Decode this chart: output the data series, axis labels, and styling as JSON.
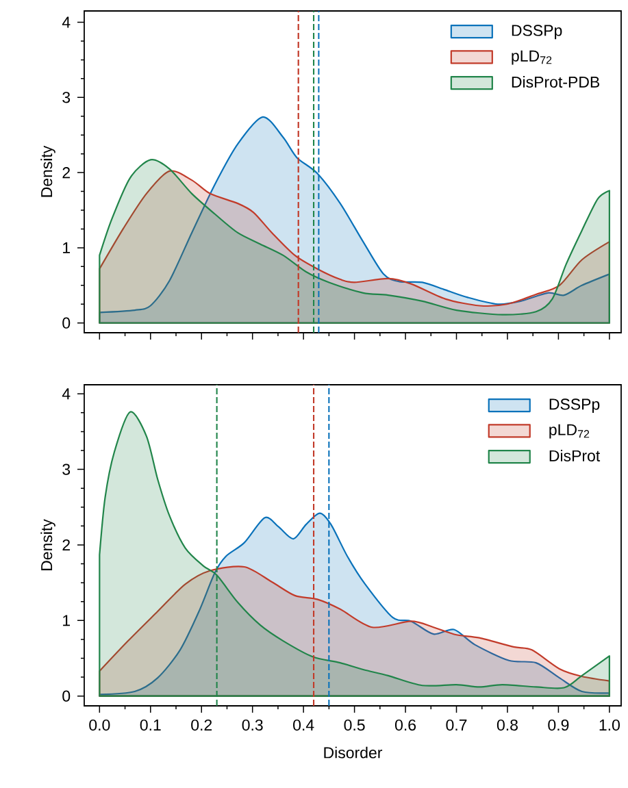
{
  "chart_data": [
    {
      "type": "area",
      "ylabel": "Density",
      "xlim": [
        -0.03,
        1.023
      ],
      "ylim": [
        -0.13,
        4.15
      ],
      "xticks": [
        {
          "value": 0,
          "label": null
        },
        {
          "value": 0.1,
          "label": null
        },
        {
          "value": 0.2,
          "label": null
        },
        {
          "value": 0.3,
          "label": null
        },
        {
          "value": 0.4,
          "label": null
        },
        {
          "value": 0.5,
          "label": null
        },
        {
          "value": 0.6,
          "label": null
        },
        {
          "value": 0.7,
          "label": null
        },
        {
          "value": 0.8,
          "label": null
        },
        {
          "value": 0.9,
          "label": null
        },
        {
          "value": 1,
          "label": null
        }
      ],
      "yticks": [
        0,
        1,
        2,
        3,
        4
      ],
      "tick_labels": "y",
      "legend": "top right",
      "series": [
        {
          "name": "DSSPp",
          "color": "#0a72ba",
          "x": [
            0,
            0.069,
            0.1,
            0.137,
            0.181,
            0.226,
            0.271,
            0.32,
            0.36,
            0.387,
            0.427,
            0.472,
            0.517,
            0.557,
            0.588,
            0.633,
            0.678,
            0.722,
            0.781,
            0.826,
            0.879,
            0.911,
            0.946,
            1.0
          ],
          "values": [
            0.14,
            0.17,
            0.23,
            0.56,
            1.2,
            1.84,
            2.38,
            2.74,
            2.47,
            2.2,
            1.99,
            1.59,
            1.08,
            0.65,
            0.55,
            0.54,
            0.44,
            0.34,
            0.25,
            0.29,
            0.4,
            0.37,
            0.5,
            0.65
          ]
        },
        {
          "name": "pLD$_{72}$",
          "color": "#c23b2a",
          "x": [
            0,
            0.047,
            0.092,
            0.137,
            0.181,
            0.217,
            0.271,
            0.302,
            0.338,
            0.383,
            0.427,
            0.472,
            0.5,
            0.566,
            0.611,
            0.678,
            0.745,
            0.799,
            0.856,
            0.902,
            0.946,
            1.0
          ],
          "values": [
            0.72,
            1.26,
            1.72,
            2.02,
            1.9,
            1.72,
            1.59,
            1.47,
            1.2,
            0.9,
            0.72,
            0.58,
            0.54,
            0.59,
            0.52,
            0.32,
            0.23,
            0.25,
            0.38,
            0.5,
            0.84,
            1.08
          ]
        },
        {
          "name": "DisProt-PDB",
          "color": "#21854a",
          "x": [
            0,
            0.024,
            0.06,
            0.1,
            0.137,
            0.181,
            0.226,
            0.271,
            0.315,
            0.36,
            0.405,
            0.45,
            0.517,
            0.566,
            0.633,
            0.7,
            0.79,
            0.856,
            0.888,
            0.915,
            0.946,
            0.977,
            1.0
          ],
          "values": [
            0.9,
            1.38,
            1.93,
            2.17,
            2.05,
            1.72,
            1.45,
            1.2,
            1.05,
            0.9,
            0.68,
            0.54,
            0.4,
            0.37,
            0.29,
            0.17,
            0.11,
            0.15,
            0.32,
            0.78,
            1.23,
            1.65,
            1.76
          ]
        }
      ],
      "ref_lines": [
        {
          "axis": "x",
          "value": 0.43,
          "color": "#0a72ba",
          "line_style": "dashed"
        },
        {
          "axis": "x",
          "value": 0.39,
          "color": "#c23b2a",
          "line_style": "dashed"
        },
        {
          "axis": "x",
          "value": 0.42,
          "color": "#21854a",
          "line_style": "dashed"
        }
      ]
    },
    {
      "type": "area",
      "xlabel": "Disorder",
      "ylabel": "Density",
      "xlim": [
        -0.03,
        1.023
      ],
      "ylim": [
        -0.13,
        4.12
      ],
      "xticks": [
        {
          "value": 0,
          "label": "0.0"
        },
        0.1,
        0.2,
        0.3,
        0.4,
        0.5,
        0.6,
        0.7,
        0.8,
        0.9,
        {
          "value": 1,
          "label": "1.0"
        }
      ],
      "yticks": [
        0,
        1,
        2,
        3,
        4
      ],
      "legend": "top right",
      "series": [
        {
          "name": "DSSPp",
          "color": "#0a72ba",
          "x": [
            0,
            0.069,
            0.114,
            0.158,
            0.195,
            0.226,
            0.248,
            0.284,
            0.324,
            0.351,
            0.38,
            0.405,
            0.432,
            0.454,
            0.486,
            0.521,
            0.575,
            0.611,
            0.655,
            0.695,
            0.736,
            0.803,
            0.856,
            0.902,
            0.946,
            1.0
          ],
          "values": [
            0.02,
            0.06,
            0.24,
            0.61,
            1.12,
            1.63,
            1.85,
            2.03,
            2.36,
            2.24,
            2.08,
            2.27,
            2.42,
            2.27,
            1.85,
            1.48,
            1.04,
            0.99,
            0.82,
            0.88,
            0.68,
            0.47,
            0.44,
            0.24,
            0.06,
            0.04
          ]
        },
        {
          "name": "pLD$_{72}$",
          "color": "#c23b2a",
          "x": [
            0,
            0.056,
            0.114,
            0.168,
            0.217,
            0.284,
            0.338,
            0.383,
            0.427,
            0.472,
            0.535,
            0.611,
            0.655,
            0.7,
            0.745,
            0.812,
            0.848,
            0.902,
            0.946,
            1.0
          ],
          "values": [
            0.33,
            0.73,
            1.12,
            1.48,
            1.66,
            1.71,
            1.51,
            1.33,
            1.28,
            1.15,
            0.91,
            0.99,
            0.91,
            0.81,
            0.77,
            0.65,
            0.61,
            0.36,
            0.26,
            0.2
          ]
        },
        {
          "name": "DisProt",
          "color": "#21854a",
          "x": [
            0,
            0.011,
            0.029,
            0.06,
            0.092,
            0.114,
            0.137,
            0.168,
            0.204,
            0.23,
            0.271,
            0.315,
            0.36,
            0.418,
            0.472,
            0.517,
            0.566,
            0.633,
            0.7,
            0.745,
            0.79,
            0.856,
            0.911,
            0.946,
            1.0
          ],
          "values": [
            1.87,
            2.63,
            3.23,
            3.76,
            3.44,
            2.87,
            2.39,
            1.96,
            1.72,
            1.6,
            1.24,
            0.94,
            0.73,
            0.52,
            0.44,
            0.35,
            0.27,
            0.14,
            0.15,
            0.12,
            0.15,
            0.12,
            0.11,
            0.27,
            0.53
          ]
        }
      ],
      "ref_lines": [
        {
          "axis": "x",
          "value": 0.45,
          "color": "#0a72ba",
          "line_style": "dashed"
        },
        {
          "axis": "x",
          "value": 0.42,
          "color": "#c23b2a",
          "line_style": "dashed"
        },
        {
          "axis": "x",
          "value": 0.23,
          "color": "#21854a",
          "line_style": "dashed"
        }
      ]
    }
  ]
}
